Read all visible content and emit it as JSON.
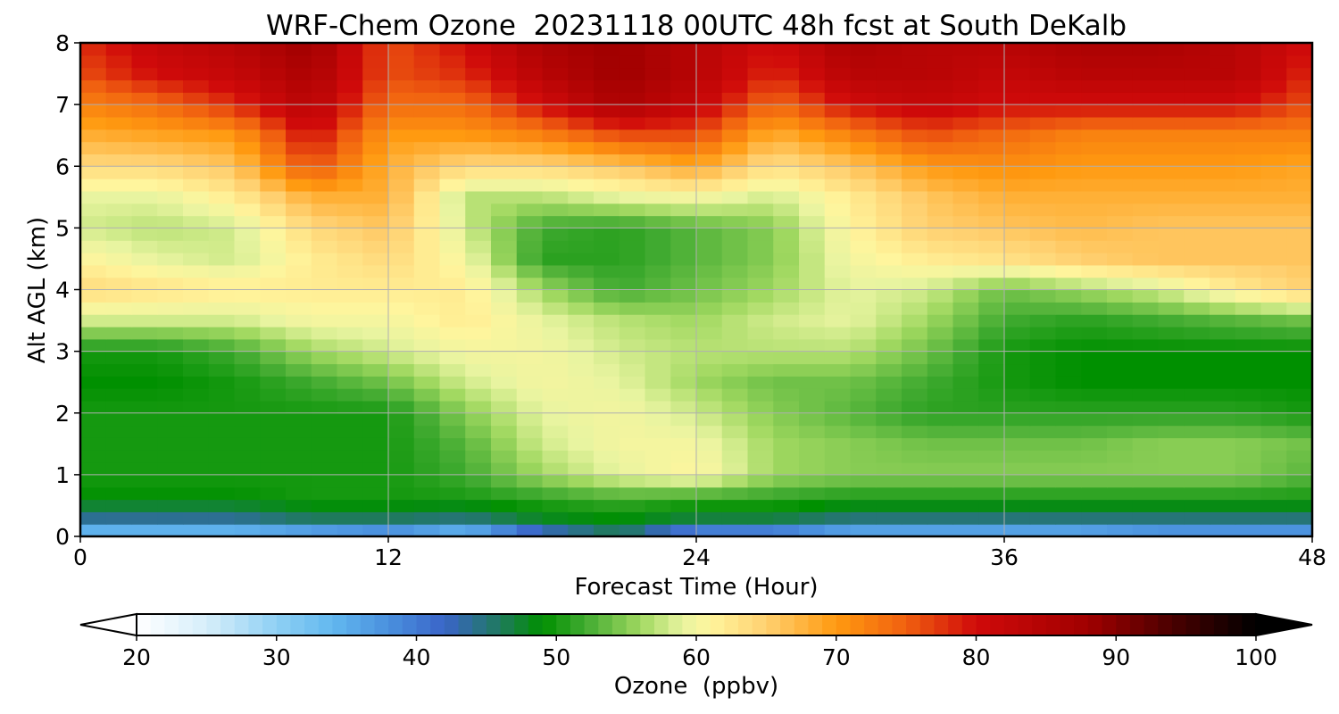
{
  "chart_data": {
    "type": "heatmap",
    "title": "WRF-Chem Ozone  20231118 00UTC 48h fcst at South DeKalb",
    "xlabel": "Forecast Time (Hour)",
    "ylabel": "Alt AGL (km)",
    "xlim": [
      0,
      48
    ],
    "ylim": [
      0,
      8
    ],
    "x_ticks": [
      0,
      12,
      24,
      36,
      48
    ],
    "y_ticks": [
      0,
      1,
      2,
      3,
      4,
      5,
      6,
      7,
      8
    ],
    "grid": true,
    "x_hours": [
      0,
      3,
      6,
      9,
      12,
      15,
      18,
      21,
      24,
      27,
      30,
      33,
      36,
      39,
      42,
      45,
      48
    ],
    "z_km": [
      0,
      0.3,
      0.6,
      1,
      1.5,
      2,
      2.5,
      3,
      3.5,
      4,
      4.5,
      5,
      5.5,
      6,
      6.5,
      7,
      7.5,
      8
    ],
    "ozone_ppbv": [
      [
        30,
        30,
        30,
        32,
        34,
        30,
        40,
        45,
        36,
        36,
        32,
        32,
        32,
        32,
        34,
        34,
        34
      ],
      [
        44,
        44,
        44,
        46,
        46,
        45,
        48,
        49,
        47,
        47,
        45,
        45,
        45,
        45,
        45,
        45,
        45
      ],
      [
        49,
        49,
        49,
        50,
        50,
        50,
        51,
        52,
        51,
        51,
        50,
        50,
        50,
        50,
        50,
        50,
        50
      ],
      [
        50,
        50,
        50,
        50,
        50,
        52,
        56,
        59,
        61,
        56,
        55,
        55,
        55,
        55,
        55,
        55,
        53
      ],
      [
        50,
        50,
        50,
        50,
        50,
        53,
        58,
        60,
        60,
        56,
        55,
        54,
        54,
        54,
        55,
        55,
        54
      ],
      [
        50,
        50,
        50,
        50,
        50,
        55,
        59,
        60,
        58,
        55,
        53,
        51,
        51,
        51,
        51,
        51,
        50
      ],
      [
        49,
        49,
        50,
        52,
        54,
        58,
        60,
        59,
        56,
        54,
        54,
        52,
        50,
        49,
        49,
        49,
        49
      ],
      [
        50,
        50,
        52,
        56,
        58,
        60,
        60,
        58,
        57,
        57,
        57,
        54,
        50,
        49,
        49,
        49,
        49
      ],
      [
        58,
        58,
        58,
        60,
        60,
        62,
        59,
        57,
        56,
        58,
        59,
        56,
        52,
        51,
        52,
        53,
        54
      ],
      [
        64,
        63,
        62,
        62,
        62,
        62,
        56,
        52,
        54,
        56,
        59,
        58,
        54,
        56,
        58,
        62,
        65
      ],
      [
        61,
        59,
        58,
        62,
        64,
        60,
        51,
        51,
        53,
        55,
        60,
        62,
        63,
        65,
        66,
        66,
        66
      ],
      [
        58,
        57,
        58,
        64,
        66,
        58,
        52,
        51,
        53,
        55,
        61,
        65,
        66,
        67,
        66,
        66,
        66
      ],
      [
        59,
        59,
        62,
        68,
        68,
        57,
        57,
        59,
        60,
        58,
        62,
        66,
        68,
        68,
        68,
        68,
        68
      ],
      [
        64,
        64,
        66,
        76,
        68,
        64,
        64,
        66,
        69,
        63,
        66,
        70,
        71,
        70,
        70,
        70,
        69
      ],
      [
        68,
        69,
        70,
        80,
        70,
        70,
        72,
        76,
        76,
        68,
        72,
        76,
        74,
        72,
        72,
        72,
        72
      ],
      [
        72,
        74,
        78,
        84,
        74,
        74,
        80,
        86,
        82,
        74,
        80,
        82,
        80,
        80,
        80,
        80,
        76
      ],
      [
        76,
        80,
        82,
        86,
        76,
        78,
        84,
        88,
        84,
        78,
        84,
        84,
        82,
        84,
        84,
        84,
        78
      ],
      [
        78,
        82,
        84,
        88,
        76,
        80,
        86,
        88,
        84,
        80,
        86,
        84,
        84,
        86,
        86,
        84,
        80
      ]
    ],
    "colorbar": {
      "label": "Ozone  (ppbv)",
      "min": 20,
      "max": 100,
      "ticks": [
        20,
        30,
        40,
        50,
        60,
        70,
        80,
        90,
        100
      ],
      "extend": "both",
      "orientation": "horizontal"
    },
    "colormap": [
      [
        20,
        "#ffffff"
      ],
      [
        25,
        "#d6eefa"
      ],
      [
        30,
        "#8fd0f4"
      ],
      [
        34,
        "#62b8ef"
      ],
      [
        38,
        "#4a90de"
      ],
      [
        42,
        "#3a64c8"
      ],
      [
        46,
        "#1f7a5c"
      ],
      [
        49,
        "#009000"
      ],
      [
        52,
        "#40aa30"
      ],
      [
        56,
        "#a0d860"
      ],
      [
        59,
        "#e8f4a0"
      ],
      [
        61,
        "#fff59d"
      ],
      [
        65,
        "#ffd070"
      ],
      [
        70,
        "#ff9a10"
      ],
      [
        75,
        "#f06010"
      ],
      [
        80,
        "#d00a0a"
      ],
      [
        88,
        "#a00000"
      ],
      [
        94,
        "#4a0000"
      ],
      [
        100,
        "#000000"
      ]
    ]
  }
}
